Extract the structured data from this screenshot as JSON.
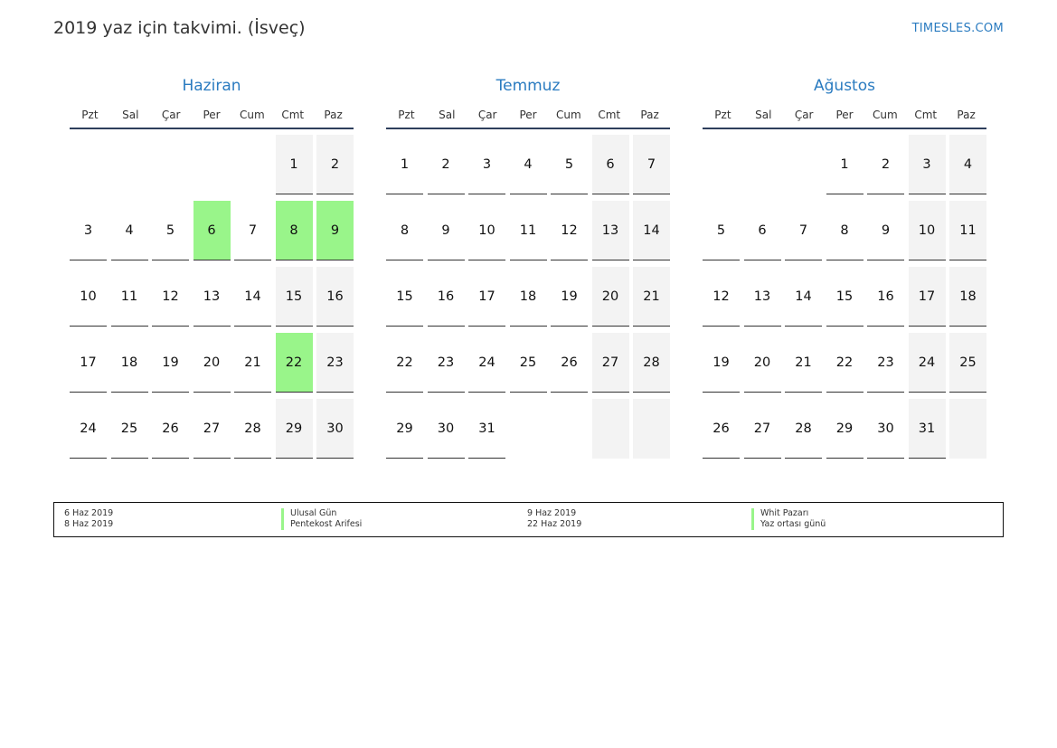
{
  "title": "2019 yaz için takvimi. (İsveç)",
  "site": "TIMESLES.COM",
  "colors": {
    "holiday": "#99f58a",
    "weekend": "#f3f3f3",
    "accent": "#2a7bc0"
  },
  "weekdays": [
    "Pzt",
    "Sal",
    "Çar",
    "Per",
    "Cum",
    "Cmt",
    "Paz"
  ],
  "months": [
    {
      "name": "Haziran",
      "start_weekday": 5,
      "days": 30,
      "holidays": [
        6,
        8,
        9,
        22
      ]
    },
    {
      "name": "Temmuz",
      "start_weekday": 0,
      "days": 31,
      "holidays": []
    },
    {
      "name": "Ağustos",
      "start_weekday": 3,
      "days": 31,
      "holidays": []
    }
  ],
  "legend": [
    {
      "date": "6 Haz 2019",
      "name": "Ulusal Gün"
    },
    {
      "date": "8 Haz 2019",
      "name": "Pentekost Arifesi"
    },
    {
      "date": "9 Haz 2019",
      "name": "Whit Pazarı"
    },
    {
      "date": "22 Haz 2019",
      "name": "Yaz ortası günü"
    }
  ]
}
